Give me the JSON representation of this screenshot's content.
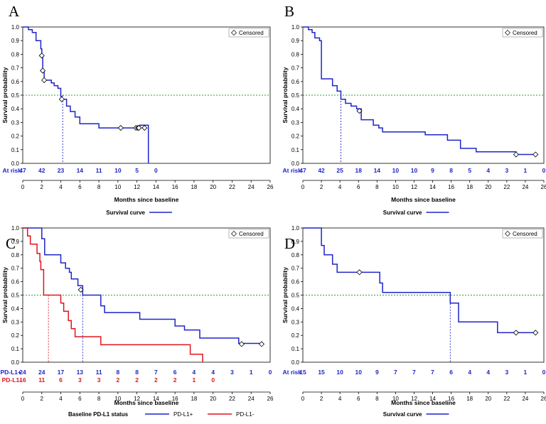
{
  "chart_data": [
    {
      "id": "A",
      "type": "line",
      "panel_label": "A",
      "title": "",
      "xlabel": "Months since baseline",
      "ylabel": "Survival probability",
      "xlim": [
        0,
        26
      ],
      "ylim": [
        0,
        1.0
      ],
      "xticks": [
        "0",
        "2",
        "4",
        "6",
        "8",
        "10",
        "12",
        "14",
        "16",
        "18",
        "20",
        "22",
        "24",
        "26"
      ],
      "yticks": [
        "0.0",
        "0.1",
        "0.2",
        "0.3",
        "0.4",
        "0.5",
        "0.6",
        "0.7",
        "0.8",
        "0.9",
        "1.0"
      ],
      "reference_line": 0.5,
      "median_x": [
        4.2
      ],
      "legend_box": "Censored",
      "bottom_legend": {
        "title": "",
        "entries": [
          {
            "name": "Survival curve",
            "color": "#1f24c8"
          }
        ]
      },
      "series": [
        {
          "name": "Survival curve",
          "color": "#1f24c8",
          "steps": [
            [
              0,
              1.0
            ],
            [
              0.6,
              1.0
            ],
            [
              0.6,
              0.98
            ],
            [
              1.0,
              0.98
            ],
            [
              1.0,
              0.96
            ],
            [
              1.4,
              0.96
            ],
            [
              1.4,
              0.9
            ],
            [
              1.9,
              0.9
            ],
            [
              1.9,
              0.84
            ],
            [
              2.0,
              0.84
            ],
            [
              2.0,
              0.79
            ],
            [
              2.1,
              0.79
            ],
            [
              2.1,
              0.68
            ],
            [
              2.25,
              0.68
            ],
            [
              2.25,
              0.61
            ],
            [
              3.0,
              0.61
            ],
            [
              3.0,
              0.59
            ],
            [
              3.3,
              0.59
            ],
            [
              3.3,
              0.57
            ],
            [
              3.7,
              0.57
            ],
            [
              3.7,
              0.55
            ],
            [
              4.0,
              0.55
            ],
            [
              4.0,
              0.49
            ],
            [
              4.1,
              0.49
            ],
            [
              4.1,
              0.47
            ],
            [
              4.6,
              0.47
            ],
            [
              4.6,
              0.42
            ],
            [
              5.0,
              0.42
            ],
            [
              5.0,
              0.38
            ],
            [
              5.5,
              0.38
            ],
            [
              5.5,
              0.34
            ],
            [
              6.0,
              0.34
            ],
            [
              6.0,
              0.29
            ],
            [
              8.0,
              0.29
            ],
            [
              8.0,
              0.26
            ],
            [
              12.3,
              0.26
            ],
            [
              12.3,
              0.28
            ],
            [
              13.2,
              0.28
            ],
            [
              13.2,
              0.0
            ]
          ],
          "censored": [
            [
              2.0,
              0.79
            ],
            [
              2.1,
              0.68
            ],
            [
              2.25,
              0.61
            ],
            [
              4.1,
              0.47
            ],
            [
              10.3,
              0.26
            ],
            [
              11.9,
              0.26
            ],
            [
              12.1,
              0.26
            ],
            [
              12.2,
              0.26
            ],
            [
              12.8,
              0.26
            ]
          ]
        }
      ],
      "at_risk": [
        {
          "label": "At risk",
          "color": "#1f24c8",
          "times": [
            0,
            2,
            4,
            6,
            8,
            10,
            12,
            14
          ],
          "counts": [
            "47",
            "42",
            "23",
            "14",
            "11",
            "10",
            "5",
            "0"
          ]
        }
      ]
    },
    {
      "id": "B",
      "type": "line",
      "panel_label": "B",
      "title": "",
      "xlabel": "Months since baseline",
      "ylabel": "Survival probability",
      "xlim": [
        0,
        26
      ],
      "ylim": [
        0,
        1.0
      ],
      "xticks": [
        "0",
        "2",
        "4",
        "6",
        "8",
        "10",
        "12",
        "14",
        "16",
        "18",
        "20",
        "22",
        "24",
        "26"
      ],
      "yticks": [
        "0.0",
        "0.1",
        "0.2",
        "0.3",
        "0.4",
        "0.5",
        "0.6",
        "0.7",
        "0.8",
        "0.9",
        "1.0"
      ],
      "reference_line": 0.5,
      "median_x": [
        4.1
      ],
      "legend_box": "Censored",
      "bottom_legend": {
        "title": "",
        "entries": [
          {
            "name": "Survival curve",
            "color": "#1f24c8"
          }
        ]
      },
      "series": [
        {
          "name": "Survival curve",
          "color": "#1f24c8",
          "steps": [
            [
              0,
              1.0
            ],
            [
              0.6,
              1.0
            ],
            [
              0.6,
              0.98
            ],
            [
              1.0,
              0.98
            ],
            [
              1.0,
              0.96
            ],
            [
              1.3,
              0.96
            ],
            [
              1.3,
              0.92
            ],
            [
              1.8,
              0.92
            ],
            [
              1.8,
              0.9
            ],
            [
              2.0,
              0.9
            ],
            [
              2.0,
              0.62
            ],
            [
              3.2,
              0.62
            ],
            [
              3.2,
              0.57
            ],
            [
              3.7,
              0.57
            ],
            [
              3.7,
              0.53
            ],
            [
              4.1,
              0.53
            ],
            [
              4.1,
              0.47
            ],
            [
              4.6,
              0.47
            ],
            [
              4.6,
              0.44
            ],
            [
              5.2,
              0.44
            ],
            [
              5.2,
              0.42
            ],
            [
              5.8,
              0.42
            ],
            [
              5.8,
              0.4
            ],
            [
              6.3,
              0.4
            ],
            [
              6.3,
              0.32
            ],
            [
              7.6,
              0.32
            ],
            [
              7.6,
              0.28
            ],
            [
              8.2,
              0.28
            ],
            [
              8.2,
              0.26
            ],
            [
              8.6,
              0.26
            ],
            [
              8.6,
              0.23
            ],
            [
              13.2,
              0.23
            ],
            [
              13.2,
              0.21
            ],
            [
              15.6,
              0.21
            ],
            [
              15.6,
              0.17
            ],
            [
              17.0,
              0.17
            ],
            [
              17.0,
              0.11
            ],
            [
              18.7,
              0.11
            ],
            [
              18.7,
              0.085
            ],
            [
              23.0,
              0.085
            ],
            [
              23.0,
              0.065
            ],
            [
              25.3,
              0.065
            ]
          ],
          "censored": [
            [
              6.1,
              0.385
            ],
            [
              23.0,
              0.065
            ],
            [
              25.1,
              0.065
            ]
          ]
        }
      ],
      "at_risk": [
        {
          "label": "At risk",
          "color": "#1f24c8",
          "times": [
            0,
            2,
            4,
            6,
            8,
            10,
            12,
            14,
            16,
            18,
            20,
            22,
            24,
            26
          ],
          "counts": [
            "47",
            "42",
            "25",
            "18",
            "14",
            "10",
            "10",
            "9",
            "8",
            "5",
            "4",
            "3",
            "1",
            "0"
          ]
        }
      ]
    },
    {
      "id": "C",
      "type": "line",
      "panel_label": "C",
      "title": "",
      "xlabel": "Months since baseline",
      "ylabel": "Survival probability",
      "xlim": [
        0,
        26
      ],
      "ylim": [
        0,
        1.0
      ],
      "xticks": [
        "0",
        "2",
        "4",
        "6",
        "8",
        "10",
        "12",
        "14",
        "16",
        "18",
        "20",
        "22",
        "24",
        "26"
      ],
      "yticks": [
        "0.0",
        "0.1",
        "0.2",
        "0.3",
        "0.4",
        "0.5",
        "0.6",
        "0.7",
        "0.8",
        "0.9",
        "1.0"
      ],
      "reference_line": 0.5,
      "median_x": [
        2.7,
        6.3
      ],
      "legend_box": "Censored",
      "bottom_legend": {
        "title": "Baseline PD-L1 status",
        "entries": [
          {
            "name": "PD-L1+",
            "color": "#1f24c8"
          },
          {
            "name": "PD-L1-",
            "color": "#e0141e"
          }
        ]
      },
      "series": [
        {
          "name": "PD-L1+",
          "color": "#1f24c8",
          "steps": [
            [
              0,
              1.0
            ],
            [
              2.0,
              1.0
            ],
            [
              2.0,
              0.92
            ],
            [
              2.3,
              0.92
            ],
            [
              2.3,
              0.8
            ],
            [
              4.0,
              0.8
            ],
            [
              4.0,
              0.74
            ],
            [
              4.5,
              0.74
            ],
            [
              4.5,
              0.7
            ],
            [
              4.9,
              0.7
            ],
            [
              4.9,
              0.67
            ],
            [
              5.1,
              0.67
            ],
            [
              5.1,
              0.62
            ],
            [
              5.8,
              0.62
            ],
            [
              5.8,
              0.57
            ],
            [
              6.3,
              0.57
            ],
            [
              6.3,
              0.5
            ],
            [
              8.2,
              0.5
            ],
            [
              8.2,
              0.42
            ],
            [
              8.6,
              0.42
            ],
            [
              8.6,
              0.37
            ],
            [
              12.3,
              0.37
            ],
            [
              12.3,
              0.32
            ],
            [
              16.0,
              0.32
            ],
            [
              16.0,
              0.27
            ],
            [
              17.0,
              0.27
            ],
            [
              17.0,
              0.24
            ],
            [
              18.6,
              0.24
            ],
            [
              18.6,
              0.18
            ],
            [
              22.7,
              0.18
            ],
            [
              22.7,
              0.14
            ],
            [
              25.3,
              0.14
            ]
          ],
          "censored": [
            [
              6.1,
              0.54
            ],
            [
              23.0,
              0.135
            ],
            [
              25.1,
              0.135
            ]
          ]
        },
        {
          "name": "PD-L1-",
          "color": "#e0141e",
          "steps": [
            [
              0,
              1.0
            ],
            [
              0.5,
              1.0
            ],
            [
              0.5,
              0.94
            ],
            [
              0.8,
              0.94
            ],
            [
              0.8,
              0.88
            ],
            [
              1.5,
              0.88
            ],
            [
              1.5,
              0.81
            ],
            [
              1.8,
              0.81
            ],
            [
              1.8,
              0.75
            ],
            [
              1.9,
              0.75
            ],
            [
              1.9,
              0.69
            ],
            [
              2.2,
              0.69
            ],
            [
              2.2,
              0.5
            ],
            [
              4.0,
              0.5
            ],
            [
              4.0,
              0.44
            ],
            [
              4.3,
              0.44
            ],
            [
              4.3,
              0.38
            ],
            [
              4.8,
              0.38
            ],
            [
              4.8,
              0.31
            ],
            [
              5.1,
              0.31
            ],
            [
              5.1,
              0.25
            ],
            [
              5.5,
              0.25
            ],
            [
              5.5,
              0.19
            ],
            [
              8.2,
              0.19
            ],
            [
              8.2,
              0.13
            ],
            [
              17.6,
              0.13
            ],
            [
              17.6,
              0.06
            ],
            [
              18.9,
              0.06
            ],
            [
              18.9,
              0.0
            ]
          ],
          "censored": []
        }
      ],
      "at_risk": [
        {
          "label": "PD-L1+",
          "color": "#1f24c8",
          "times": [
            0,
            2,
            4,
            6,
            8,
            10,
            12,
            14,
            16,
            18,
            20,
            22,
            24,
            26
          ],
          "counts": [
            "24",
            "24",
            "17",
            "13",
            "11",
            "8",
            "8",
            "7",
            "6",
            "4",
            "4",
            "3",
            "1",
            "0"
          ]
        },
        {
          "label": "PD-L1-",
          "color": "#e0141e",
          "times": [
            0,
            2,
            4,
            6,
            8,
            10,
            12,
            14,
            16,
            18,
            20
          ],
          "counts": [
            "16",
            "11",
            "6",
            "3",
            "3",
            "2",
            "2",
            "2",
            "2",
            "1",
            "0"
          ]
        }
      ]
    },
    {
      "id": "D",
      "type": "line",
      "panel_label": "D",
      "title": "",
      "xlabel": "Months since baseline",
      "ylabel": "Survival probability",
      "xlim": [
        0,
        26
      ],
      "ylim": [
        0,
        1.0
      ],
      "xticks": [
        "0",
        "2",
        "4",
        "6",
        "8",
        "10",
        "12",
        "14",
        "16",
        "18",
        "20",
        "22",
        "24",
        "26"
      ],
      "yticks": [
        "0.0",
        "0.1",
        "0.2",
        "0.3",
        "0.4",
        "0.5",
        "0.6",
        "0.7",
        "0.8",
        "0.9",
        "1.0"
      ],
      "reference_line": 0.5,
      "median_x": [
        15.9
      ],
      "legend_box": "Censored",
      "bottom_legend": {
        "title": "",
        "entries": [
          {
            "name": "Survival curve",
            "color": "#1f24c8"
          }
        ]
      },
      "series": [
        {
          "name": "Survival curve",
          "color": "#1f24c8",
          "steps": [
            [
              0,
              1.0
            ],
            [
              2.0,
              1.0
            ],
            [
              2.0,
              0.87
            ],
            [
              2.3,
              0.87
            ],
            [
              2.3,
              0.8
            ],
            [
              3.2,
              0.8
            ],
            [
              3.2,
              0.73
            ],
            [
              3.7,
              0.73
            ],
            [
              3.7,
              0.67
            ],
            [
              8.3,
              0.67
            ],
            [
              8.3,
              0.59
            ],
            [
              8.6,
              0.59
            ],
            [
              8.6,
              0.52
            ],
            [
              15.9,
              0.52
            ],
            [
              15.9,
              0.44
            ],
            [
              16.8,
              0.44
            ],
            [
              16.8,
              0.3
            ],
            [
              21.0,
              0.3
            ],
            [
              21.0,
              0.22
            ],
            [
              25.3,
              0.22
            ]
          ],
          "censored": [
            [
              6.1,
              0.67
            ],
            [
              23.0,
              0.22
            ],
            [
              25.1,
              0.22
            ]
          ]
        }
      ],
      "at_risk": [
        {
          "label": "At risk",
          "color": "#1f24c8",
          "times": [
            0,
            2,
            4,
            6,
            8,
            10,
            12,
            14,
            16,
            18,
            20,
            22,
            24,
            26
          ],
          "counts": [
            "15",
            "15",
            "10",
            "10",
            "9",
            "7",
            "7",
            "7",
            "6",
            "4",
            "4",
            "3",
            "1",
            "0"
          ]
        }
      ]
    }
  ]
}
